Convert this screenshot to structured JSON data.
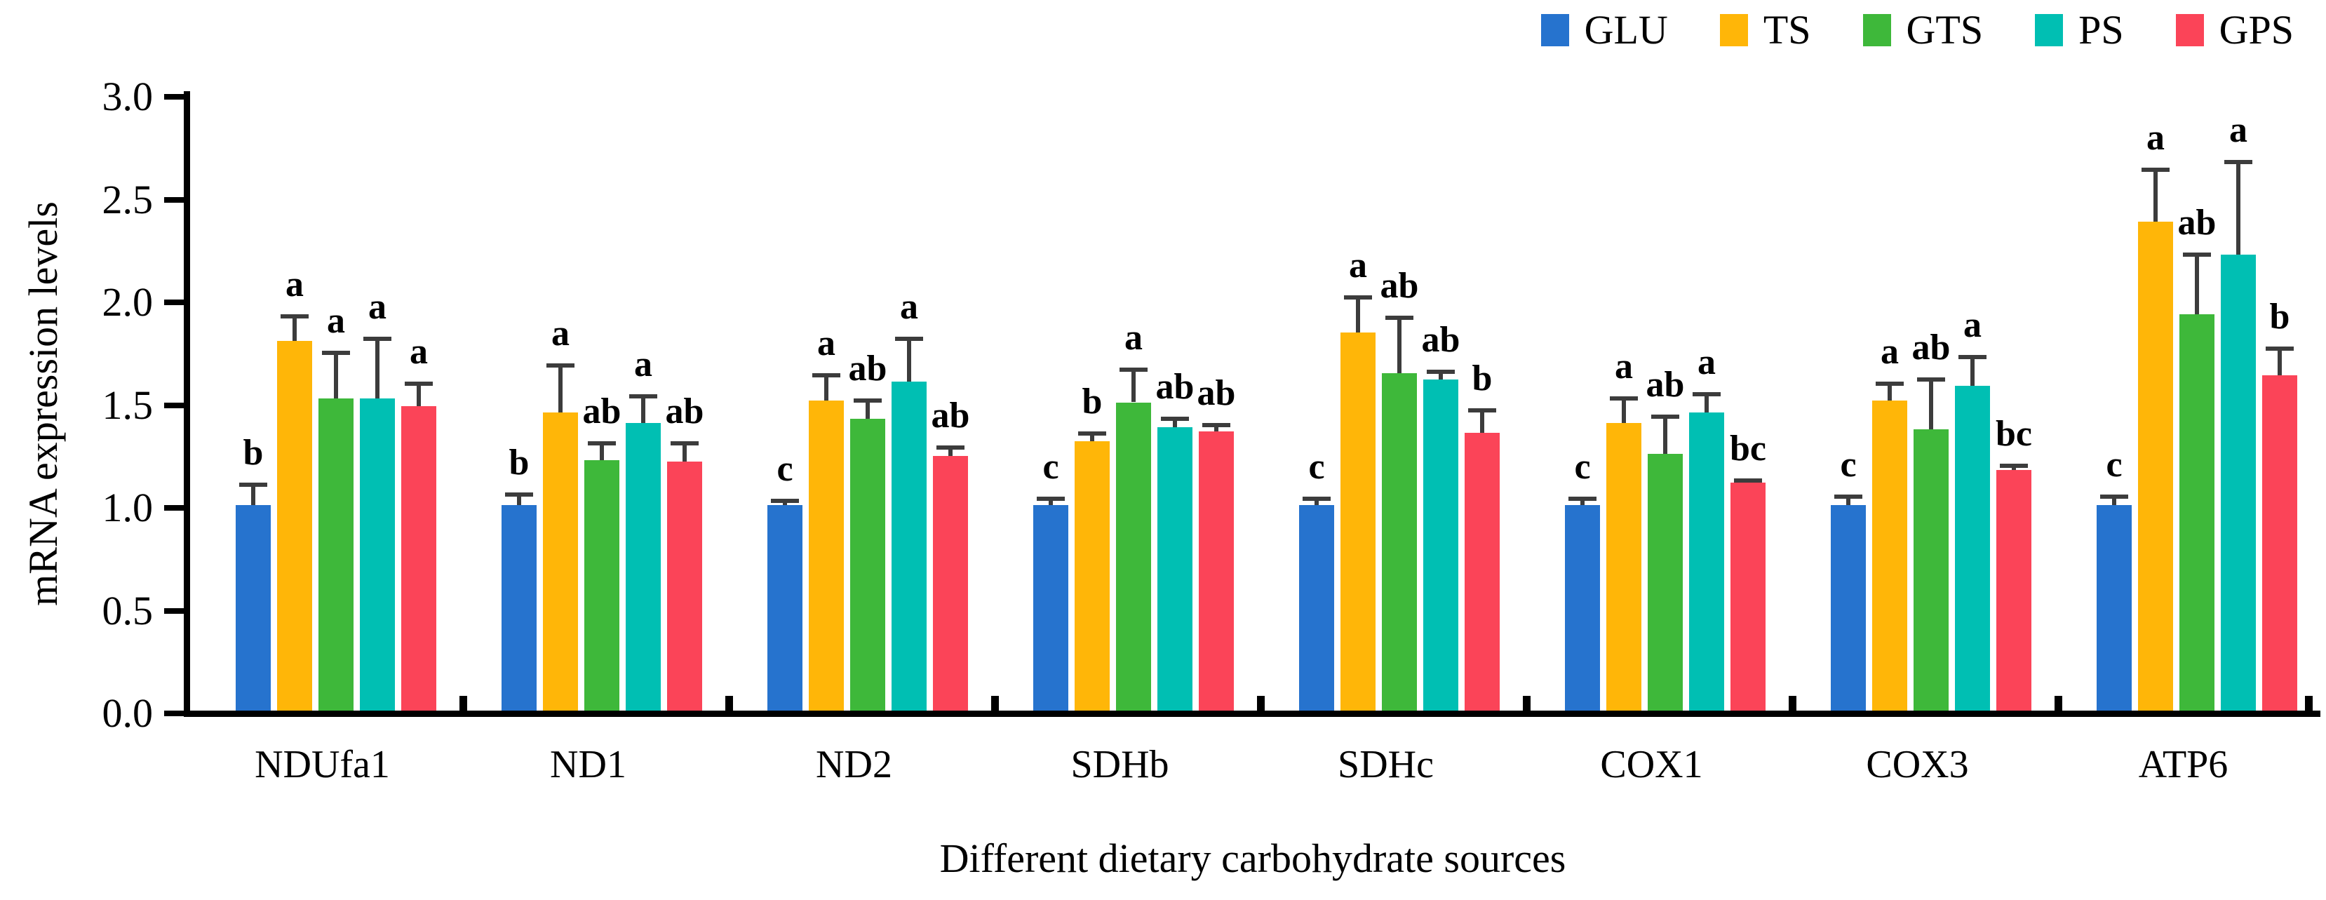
{
  "chart_data": {
    "type": "bar",
    "title": "",
    "xlabel": "Different dietary carbohydrate sources",
    "ylabel": "mRNA expression levels",
    "categories": [
      "NDUfa1",
      "ND1",
      "ND2",
      "SDHb",
      "SDHc",
      "COX1",
      "COX3",
      "ATP6"
    ],
    "yticks": [
      "0.0",
      "0.5",
      "1.0",
      "1.5",
      "2.0",
      "2.5",
      "3.0"
    ],
    "ylim": [
      0.0,
      3.0
    ],
    "grid": false,
    "legend_position": "top-right",
    "axis_color": "#000000",
    "error_bar_color": "#3c3c3c",
    "error_bars": "upper SD with T-cap",
    "series": [
      {
        "name": "GLU",
        "color": "#2673CE",
        "values": [
          1.0,
          1.0,
          1.0,
          1.0,
          1.0,
          1.0,
          1.0,
          1.0
        ],
        "errors": [
          0.11,
          0.06,
          0.03,
          0.04,
          0.04,
          0.04,
          0.05,
          0.05
        ],
        "sig_letters": [
          "b",
          "b",
          "c",
          "c",
          "c",
          "c",
          "c",
          "c"
        ]
      },
      {
        "name": "TS",
        "color": "#FFB608",
        "values": [
          1.8,
          1.45,
          1.51,
          1.31,
          1.84,
          1.4,
          1.51,
          2.38
        ],
        "errors": [
          0.13,
          0.24,
          0.13,
          0.05,
          0.18,
          0.13,
          0.09,
          0.26
        ],
        "sig_letters": [
          "a",
          "a",
          "a",
          "b",
          "a",
          "a",
          "a",
          "a"
        ]
      },
      {
        "name": "GTS",
        "color": "#3EB83A",
        "values": [
          1.52,
          1.22,
          1.42,
          1.5,
          1.64,
          1.25,
          1.37,
          1.93
        ],
        "errors": [
          0.23,
          0.09,
          0.1,
          0.17,
          0.28,
          0.19,
          0.25,
          0.3
        ],
        "sig_letters": [
          "a",
          "ab",
          "ab",
          "a",
          "ab",
          "ab",
          "ab",
          "ab"
        ]
      },
      {
        "name": "PS",
        "color": "#00BFB3",
        "values": [
          1.52,
          1.4,
          1.6,
          1.38,
          1.61,
          1.45,
          1.58,
          2.22
        ],
        "errors": [
          0.3,
          0.14,
          0.22,
          0.05,
          0.05,
          0.1,
          0.15,
          0.46
        ],
        "sig_letters": [
          "a",
          "a",
          "a",
          "ab",
          "ab",
          "a",
          "a",
          "a"
        ]
      },
      {
        "name": "GPS",
        "color": "#FB4458",
        "values": [
          1.48,
          1.21,
          1.24,
          1.36,
          1.35,
          1.11,
          1.17,
          1.63
        ],
        "errors": [
          0.12,
          0.1,
          0.05,
          0.04,
          0.12,
          0.02,
          0.03,
          0.14
        ],
        "sig_letters": [
          "a",
          "ab",
          "ab",
          "ab",
          "b",
          "bc",
          "bc",
          "b"
        ]
      }
    ]
  }
}
